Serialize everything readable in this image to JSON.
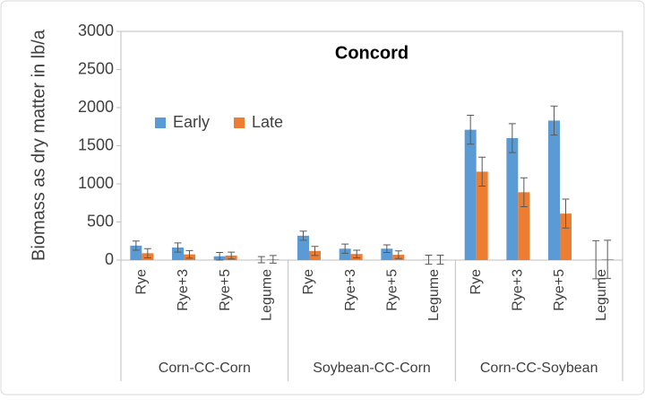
{
  "chart_data": {
    "type": "bar",
    "title": "Concord",
    "y_label": "Biomass as dry matter in lb/a",
    "categories": [
      "Rye",
      "Rye+3",
      "Rye+5",
      "Legume",
      "Rye",
      "Rye+3",
      "Rye+5",
      "Legume",
      "Rye",
      "Rye+3",
      "Rye+5",
      "Legume"
    ],
    "groups": [
      "Corn-CC-Corn",
      "Soybean-CC-Corn",
      "Corn-CC-Soybean"
    ],
    "series": [
      {
        "name": "Early",
        "color": "#5b9bd5",
        "values": [
          190,
          165,
          50,
          5,
          320,
          150,
          150,
          5,
          1710,
          1600,
          1830,
          5
        ],
        "errors": [
          60,
          60,
          50,
          40,
          60,
          60,
          50,
          60,
          190,
          190,
          190,
          250
        ]
      },
      {
        "name": "Late",
        "color": "#ed7d31",
        "values": [
          90,
          75,
          60,
          10,
          120,
          80,
          70,
          5,
          1160,
          890,
          610,
          10
        ],
        "errors": [
          60,
          50,
          45,
          50,
          60,
          50,
          50,
          60,
          190,
          190,
          190,
          250
        ]
      }
    ],
    "ylim": [
      0,
      3000
    ],
    "yticks": [
      0,
      500,
      1000,
      1500,
      2000,
      2500,
      3000
    ],
    "grid": false,
    "legend": "upper left"
  }
}
